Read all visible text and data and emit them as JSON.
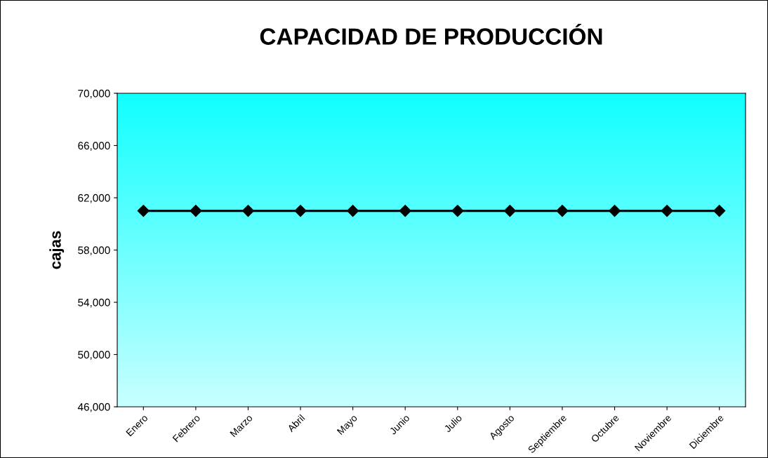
{
  "chart_data": {
    "type": "line",
    "title": "CAPACIDAD DE PRODUCCIÓN",
    "ylabel": "cajas",
    "categories": [
      "Enero",
      "Febrero",
      "Marzo",
      "Abril",
      "Mayo",
      "Junio",
      "Julio",
      "Agosto",
      "Septiembre",
      "Octubre",
      "Noviembre",
      "Diciembre"
    ],
    "series": [
      {
        "color": "#000000",
        "values": [
          61000,
          61000,
          61000,
          61000,
          61000,
          61000,
          61000,
          61000,
          61000,
          61000,
          61000,
          61000
        ]
      }
    ],
    "ylim": [
      46000,
      70000
    ],
    "yticks": [
      {
        "value": 46000,
        "label": "46,000"
      },
      {
        "value": 50000,
        "label": "50,000"
      },
      {
        "value": 54000,
        "label": "54,000"
      },
      {
        "value": 58000,
        "label": "58,000"
      },
      {
        "value": 62000,
        "label": "62,000"
      },
      {
        "value": 66000,
        "label": "66,000"
      },
      {
        "value": 70000,
        "label": "70,000"
      }
    ],
    "grid": false,
    "legend": false,
    "marker": "diamond",
    "line_style": "solid"
  }
}
